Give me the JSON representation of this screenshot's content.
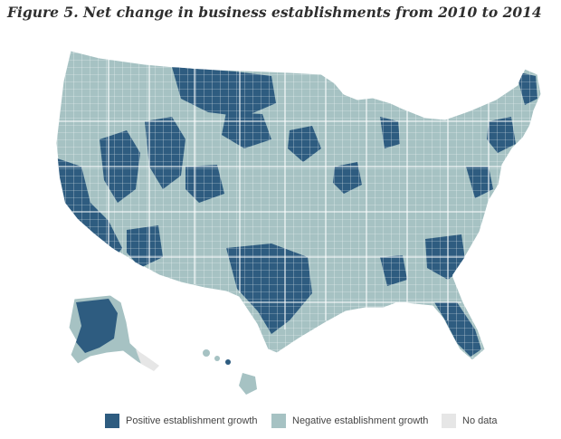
{
  "title": "Figure 5. Net change in business establishments from 2010 to 2014",
  "colors": {
    "positive": "#2e5c80",
    "negative": "#a6c2c3",
    "no_data": "#e6e6e6",
    "border": "#ffffff"
  },
  "legend": {
    "positive_label": "Positive establishment growth",
    "negative_label": "Negative establishment growth",
    "no_data_label": "No data"
  }
}
